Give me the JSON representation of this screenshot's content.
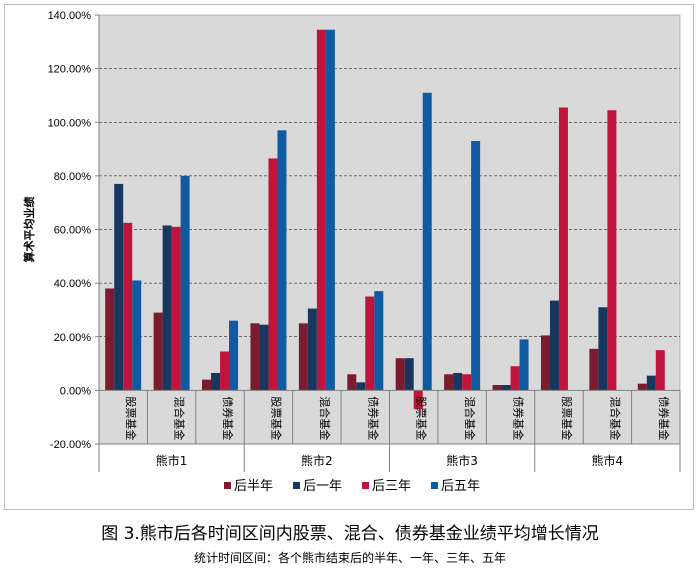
{
  "chart_data": {
    "type": "bar",
    "ylabel": "算术平均业绩",
    "ylim": [
      -20,
      140
    ],
    "yticks": [
      -20,
      0,
      20,
      40,
      60,
      80,
      100,
      120,
      140
    ],
    "ytick_labels": [
      "-20.00%",
      "0.00%",
      "20.00%",
      "40.00%",
      "60.00%",
      "80.00%",
      "100.00%",
      "120.00%",
      "140.00%"
    ],
    "grid": true,
    "legend_position": "bottom",
    "groups": [
      {
        "label": "熊市1",
        "categories": [
          "股票基金",
          "混合基金",
          "债券基金"
        ]
      },
      {
        "label": "熊市2",
        "categories": [
          "股票基金",
          "混合基金",
          "债券基金"
        ]
      },
      {
        "label": "熊市3",
        "categories": [
          "股票基金",
          "混合基金",
          "债券基金"
        ]
      },
      {
        "label": "熊市4",
        "categories": [
          "股票基金",
          "混合基金",
          "债券基金"
        ]
      }
    ],
    "series": [
      {
        "name": "后半年",
        "color": "#7b1c2e",
        "values": [
          38,
          29,
          4,
          25,
          25,
          6,
          12,
          6,
          2,
          20.5,
          15.5,
          2.5
        ]
      },
      {
        "name": "后一年",
        "color": "#17375e",
        "values": [
          77,
          61.5,
          6.5,
          24.5,
          30.5,
          3,
          12,
          6.5,
          2,
          33.5,
          31,
          5.5
        ]
      },
      {
        "name": "后三年",
        "color": "#c0143c",
        "values": [
          62.5,
          61,
          14.5,
          86.5,
          134.5,
          35,
          -7,
          6,
          9,
          105.5,
          104.5,
          15
        ]
      },
      {
        "name": "后五年",
        "color": "#0f5aa0",
        "values": [
          41,
          80,
          26,
          97,
          134.5,
          37,
          111,
          93,
          19,
          null,
          null,
          null
        ]
      }
    ]
  },
  "caption": "图 3.熊市后各时间区间内股票、混合、债券基金业绩平均增长情况",
  "subcaption": "统计时间区间：各个熊市结束后的半年、一年、三年、五年"
}
